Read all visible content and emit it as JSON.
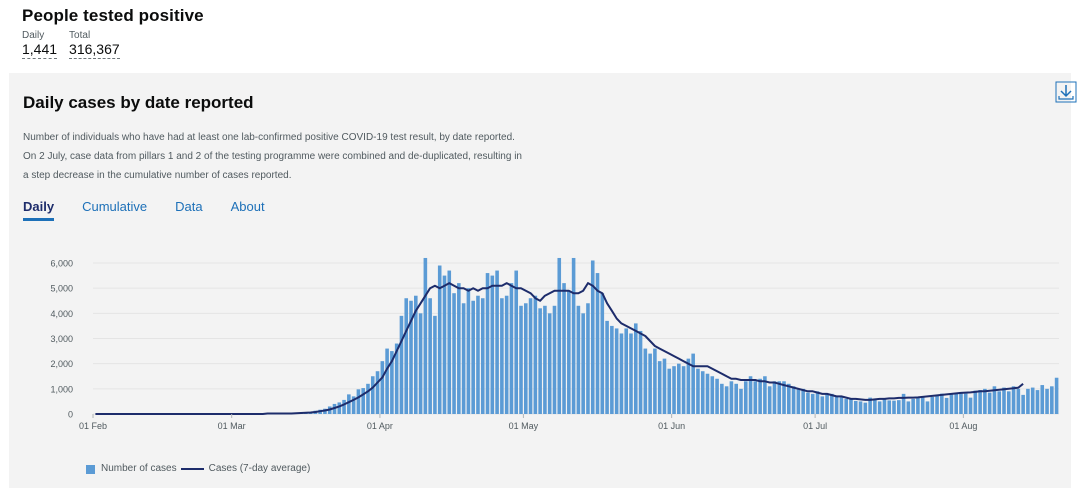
{
  "headline": {
    "title": "People tested positive",
    "daily_label": "Daily",
    "daily_value": "1,441",
    "total_label": "Total",
    "total_value": "316,367"
  },
  "card": {
    "title": "Daily cases by date reported",
    "description": "Number of individuals who have had at least one lab-confirmed positive COVID-19 test result, by date reported. On 2 July, case data from pillars 1 and 2 of the testing programme were combined and de-duplicated, resulting in a step decrease in the cumulative number of cases reported.",
    "tabs": [
      "Daily",
      "Cumulative",
      "Data",
      "About"
    ],
    "download_icon": "download-icon"
  },
  "colors": {
    "bar": "#5b9bd5",
    "line": "#1d2c6b",
    "tab": "#1d70b8"
  },
  "chart_data": {
    "type": "bar",
    "x_start": "01 Feb",
    "x_ticks": [
      "01 Feb",
      "01 Mar",
      "01 Apr",
      "01 May",
      "01 Jun",
      "01 Jul",
      "01 Aug"
    ],
    "y_ticks": [
      "0",
      "1,000",
      "2,000",
      "3,000",
      "4,000",
      "5,000",
      "6,000"
    ],
    "ylim": [
      0,
      6000
    ],
    "grid": true,
    "legend_position": "bottom-left",
    "series": [
      {
        "name": "Number of cases",
        "kind": "bar",
        "values": [
          0,
          0,
          0,
          0,
          0,
          0,
          0,
          0,
          0,
          0,
          0,
          0,
          0,
          0,
          0,
          0,
          0,
          0,
          0,
          0,
          0,
          0,
          0,
          0,
          0,
          0,
          0,
          0,
          0,
          0,
          0,
          0,
          0,
          0,
          0,
          0,
          10,
          10,
          20,
          20,
          30,
          40,
          40,
          50,
          70,
          80,
          130,
          170,
          210,
          300,
          400,
          460,
          560,
          780,
          700,
          980,
          1030,
          1200,
          1500,
          1700,
          2100,
          2600,
          2500,
          2800,
          3900,
          4600,
          4500,
          4700,
          4000,
          6200,
          4600,
          3900,
          5900,
          5500,
          5700,
          4800,
          5200,
          4400,
          5000,
          4500,
          4700,
          4600,
          5600,
          5500,
          5700,
          4600,
          4700,
          5200,
          5700,
          4300,
          4400,
          4600,
          4700,
          4200,
          4300,
          4000,
          4300,
          6200,
          5200,
          4900,
          6200,
          4300,
          4000,
          4400,
          6100,
          5600,
          4800,
          3700,
          3500,
          3400,
          3200,
          3400,
          3200,
          3600,
          3300,
          2600,
          2400,
          2600,
          2100,
          2200,
          1800,
          1900,
          2000,
          1900,
          2200,
          2400,
          1800,
          1700,
          1600,
          1500,
          1400,
          1200,
          1100,
          1300,
          1200,
          1000,
          1300,
          1500,
          1300,
          1400,
          1500,
          1100,
          1300,
          1300,
          1300,
          1200,
          1100,
          1000,
          1000,
          850,
          800,
          900,
          700,
          800,
          800,
          700,
          700,
          600,
          600,
          520,
          500,
          450,
          650,
          560,
          500,
          600,
          540,
          530,
          550,
          800,
          500,
          600,
          650,
          700,
          500,
          680,
          740,
          810,
          640,
          800,
          800,
          860,
          810,
          650,
          930,
          950,
          1000,
          850,
          1100,
          900,
          1050,
          900,
          1100,
          1000,
          760,
          1000,
          1050,
          950,
          1150,
          1000,
          1100,
          1441
        ]
      },
      {
        "name": "Cases (7-day average)",
        "kind": "line",
        "values": [
          0,
          0,
          0,
          0,
          0,
          0,
          0,
          0,
          0,
          0,
          0,
          0,
          0,
          0,
          0,
          0,
          0,
          0,
          0,
          0,
          0,
          0,
          0,
          0,
          0,
          0,
          0,
          0,
          0,
          0,
          0,
          0,
          0,
          0,
          0,
          0,
          20,
          20,
          20,
          20,
          20,
          20,
          30,
          40,
          50,
          60,
          80,
          110,
          140,
          180,
          240,
          300,
          380,
          470,
          560,
          660,
          780,
          900,
          1050,
          1250,
          1450,
          1800,
          2100,
          2500,
          2900,
          3300,
          3700,
          4100,
          4400,
          4700,
          5000,
          5100,
          5000,
          5100,
          5200,
          5100,
          5000,
          5000,
          4900,
          5000,
          4900,
          5000,
          5000,
          5100,
          5100,
          5100,
          5200,
          5100,
          5000,
          5000,
          4900,
          4800,
          4600,
          4500,
          4700,
          4800,
          4900,
          4900,
          4900,
          4900,
          4800,
          4800,
          4900,
          5200,
          5100,
          4900,
          4800,
          4400,
          4100,
          3800,
          3600,
          3500,
          3400,
          3300,
          3200,
          3100,
          2900,
          2700,
          2600,
          2500,
          2400,
          2300,
          2200,
          2100,
          2000,
          1900,
          1900,
          1900,
          1900,
          1800,
          1700,
          1600,
          1500,
          1400,
          1400,
          1350,
          1350,
          1350,
          1350,
          1300,
          1300,
          1250,
          1250,
          1200,
          1150,
          1100,
          1050,
          1000,
          950,
          900,
          900,
          850,
          800,
          800,
          750,
          700,
          700,
          650,
          600,
          600,
          580,
          560,
          560,
          580,
          600,
          600,
          620,
          620,
          640,
          640,
          650,
          650,
          660,
          680,
          700,
          720,
          740,
          760,
          780,
          800,
          820,
          840,
          850,
          860,
          880,
          900,
          900,
          920,
          940,
          960,
          980,
          1000,
          1020,
          1050,
          1200
        ]
      }
    ]
  }
}
